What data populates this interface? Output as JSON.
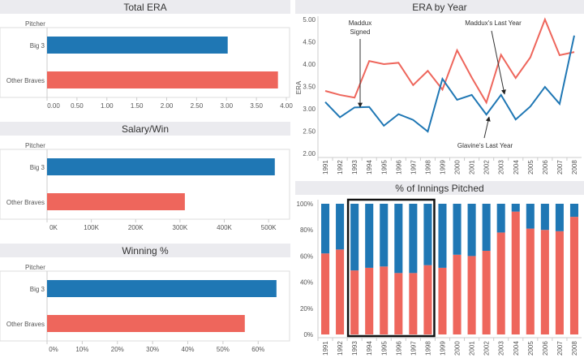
{
  "colors": {
    "big3": "#1f77b4",
    "other": "#ee665c",
    "header": "#ebebef"
  },
  "chart_data": [
    {
      "type": "bar",
      "title": "Total ERA",
      "ylabel": "Pitcher",
      "categories": [
        "Big 3",
        "Other Braves"
      ],
      "values": [
        3.02,
        3.86
      ],
      "xlim": [
        0,
        4
      ],
      "ticks": [
        "0.00",
        "0.50",
        "1.00",
        "1.50",
        "2.00",
        "2.50",
        "3.00",
        "3.50",
        "4.00"
      ]
    },
    {
      "type": "bar",
      "title": "Salary/Win",
      "ylabel": "Pitcher",
      "categories": [
        "Big 3",
        "Other Braves"
      ],
      "values": [
        514000,
        311000
      ],
      "xlim": [
        0,
        540000
      ],
      "ticks": [
        "0K",
        "100K",
        "200K",
        "300K",
        "400K",
        "500K"
      ]
    },
    {
      "type": "bar",
      "title": "Winning %",
      "ylabel": "Pitcher",
      "categories": [
        "Big 3",
        "Other Braves"
      ],
      "values": [
        0.652,
        0.562
      ],
      "xlim": [
        0,
        0.68
      ],
      "ticks": [
        "0%",
        "10%",
        "20%",
        "30%",
        "40%",
        "50%",
        "60%"
      ]
    },
    {
      "type": "line",
      "title": "ERA by Year",
      "ylabel": "ERA",
      "ylim": [
        2,
        5
      ],
      "ticks": [
        "2.00",
        "2.50",
        "3.00",
        "3.50",
        "4.00",
        "4.50",
        "5.00"
      ],
      "x": [
        "1991",
        "1992",
        "1993",
        "1994",
        "1995",
        "1996",
        "1997",
        "1998",
        "1999",
        "2000",
        "2001",
        "2002",
        "2003",
        "2004",
        "2005",
        "2006",
        "2007",
        "2008"
      ],
      "series": [
        {
          "key": "other",
          "values": [
            3.4,
            3.31,
            3.25,
            4.07,
            4.0,
            4.03,
            3.53,
            3.85,
            3.43,
            4.31,
            3.7,
            3.14,
            4.21,
            3.69,
            4.15,
            5.0,
            4.2,
            4.27
          ]
        },
        {
          "key": "big3",
          "values": [
            3.15,
            2.81,
            3.03,
            3.04,
            2.62,
            2.88,
            2.75,
            2.49,
            3.67,
            3.2,
            3.31,
            2.87,
            3.31,
            2.76,
            3.05,
            3.49,
            3.11,
            4.64
          ]
        }
      ],
      "annotations": [
        {
          "text": [
            "Maddux",
            "Signed"
          ],
          "year": "1993"
        },
        {
          "text": [
            "Maddux's Last Year"
          ],
          "year": "2003"
        },
        {
          "text": [
            "Glavine's Last Year"
          ],
          "year": "2002"
        }
      ]
    },
    {
      "type": "bar",
      "stacked": true,
      "title": "% of Innings Pitched",
      "ylim": [
        0,
        1
      ],
      "ticks": [
        "0%",
        "20%",
        "40%",
        "60%",
        "80%",
        "100%"
      ],
      "x": [
        "1991",
        "1992",
        "1993",
        "1994",
        "1995",
        "1996",
        "1997",
        "1998",
        "1999",
        "2000",
        "2001",
        "2002",
        "2003",
        "2004",
        "2005",
        "2006",
        "2007",
        "2008"
      ],
      "series": [
        {
          "key": "other",
          "values": [
            0.62,
            0.65,
            0.49,
            0.51,
            0.52,
            0.47,
            0.47,
            0.53,
            0.51,
            0.61,
            0.6,
            0.64,
            0.78,
            0.94,
            0.81,
            0.8,
            0.79,
            0.9
          ]
        },
        {
          "key": "big3",
          "values": [
            0.38,
            0.35,
            0.51,
            0.49,
            0.48,
            0.53,
            0.53,
            0.47,
            0.49,
            0.39,
            0.4,
            0.36,
            0.22,
            0.06,
            0.19,
            0.2,
            0.21,
            0.1
          ]
        }
      ],
      "highlight": [
        "1993",
        "1998"
      ]
    }
  ]
}
